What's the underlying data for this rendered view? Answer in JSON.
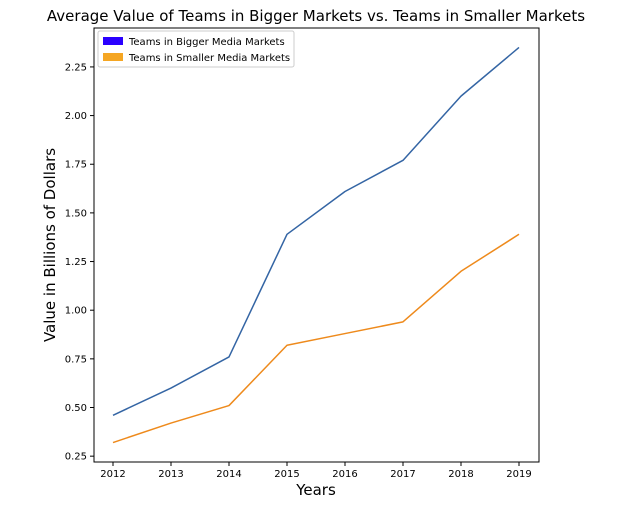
{
  "chart_data": {
    "type": "line",
    "title": "Average Value of Teams in Bigger Markets vs. Teams in Smaller Markets",
    "xlabel": "Years",
    "ylabel": "Value in Billions of Dollars",
    "x": [
      "2012",
      "2013",
      "2014",
      "2015",
      "2016",
      "2017",
      "2018",
      "2019"
    ],
    "yticks": [
      "0.25",
      "0.50",
      "0.75",
      "1.00",
      "1.25",
      "1.50",
      "1.75",
      "2.00",
      "2.25"
    ],
    "ylim": [
      0.22,
      2.45
    ],
    "grid": false,
    "legend_position": "top-left",
    "series": [
      {
        "name": "Teams in Bigger Media Markets",
        "line_color": "#3465a4",
        "legend_color": "#2a00ff",
        "values": [
          0.46,
          0.6,
          0.76,
          1.39,
          1.61,
          1.77,
          2.1,
          2.35
        ]
      },
      {
        "name": "Teams in Smaller Media Markets",
        "line_color": "#ee8a1c",
        "legend_color": "#f5a623",
        "values": [
          0.32,
          0.42,
          0.51,
          0.82,
          0.88,
          0.94,
          1.2,
          1.39
        ]
      }
    ]
  }
}
